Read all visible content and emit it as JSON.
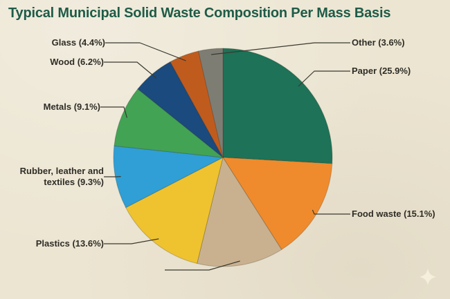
{
  "title": "Typical Municipal Solid Waste Composition Per Mass Basis",
  "theme": {
    "background": "#ece5d2",
    "title_color": "#1e5b47",
    "label_color": "#2e2d26",
    "leader_line_color": "#3a392f",
    "logo_color": "#f7f1df"
  },
  "chart_data": {
    "type": "pie",
    "title": "Typical Municipal Solid Waste Composition Per Mass Basis",
    "direction": "clockwise",
    "start_angle_deg": 0,
    "legend_position": "callout-labels",
    "slices": [
      {
        "label": "Paper",
        "value": 25.9,
        "display": "Paper (25.9%)",
        "color": "#1d7257",
        "label_visible": true,
        "label_side": "right"
      },
      {
        "label": "Food waste",
        "value": 15.1,
        "display": "Food waste (15.1%)",
        "color": "#ef8b2d",
        "label_visible": true,
        "label_side": "right"
      },
      {
        "label": "",
        "value": 12.8,
        "display": "",
        "color": "#c9b190",
        "label_visible": false,
        "label_side": "none"
      },
      {
        "label": "Plastics",
        "value": 13.6,
        "display": "Plastics (13.6%)",
        "color": "#efc32f",
        "label_visible": true,
        "label_side": "left"
      },
      {
        "label": "Rubber, leather and textiles",
        "value": 9.3,
        "display": "Rubber, leather and textiles (9.3%)",
        "color": "#2f9fd6",
        "label_visible": true,
        "label_side": "left"
      },
      {
        "label": "Metals",
        "value": 9.1,
        "display": "Metals (9.1%)",
        "color": "#42a355",
        "label_visible": true,
        "label_side": "left"
      },
      {
        "label": "Wood",
        "value": 6.2,
        "display": "Wood (6.2%)",
        "color": "#1a4a7e",
        "label_visible": true,
        "label_side": "left"
      },
      {
        "label": "Glass",
        "value": 4.4,
        "display": "Glass (4.4%)",
        "color": "#c05b1e",
        "label_visible": true,
        "label_side": "left"
      },
      {
        "label": "Other",
        "value": 3.6,
        "display": "Other (3.6%)",
        "color": "#7e7d74",
        "label_visible": true,
        "label_side": "right"
      }
    ]
  },
  "logo": {
    "name": "four-point-star"
  }
}
